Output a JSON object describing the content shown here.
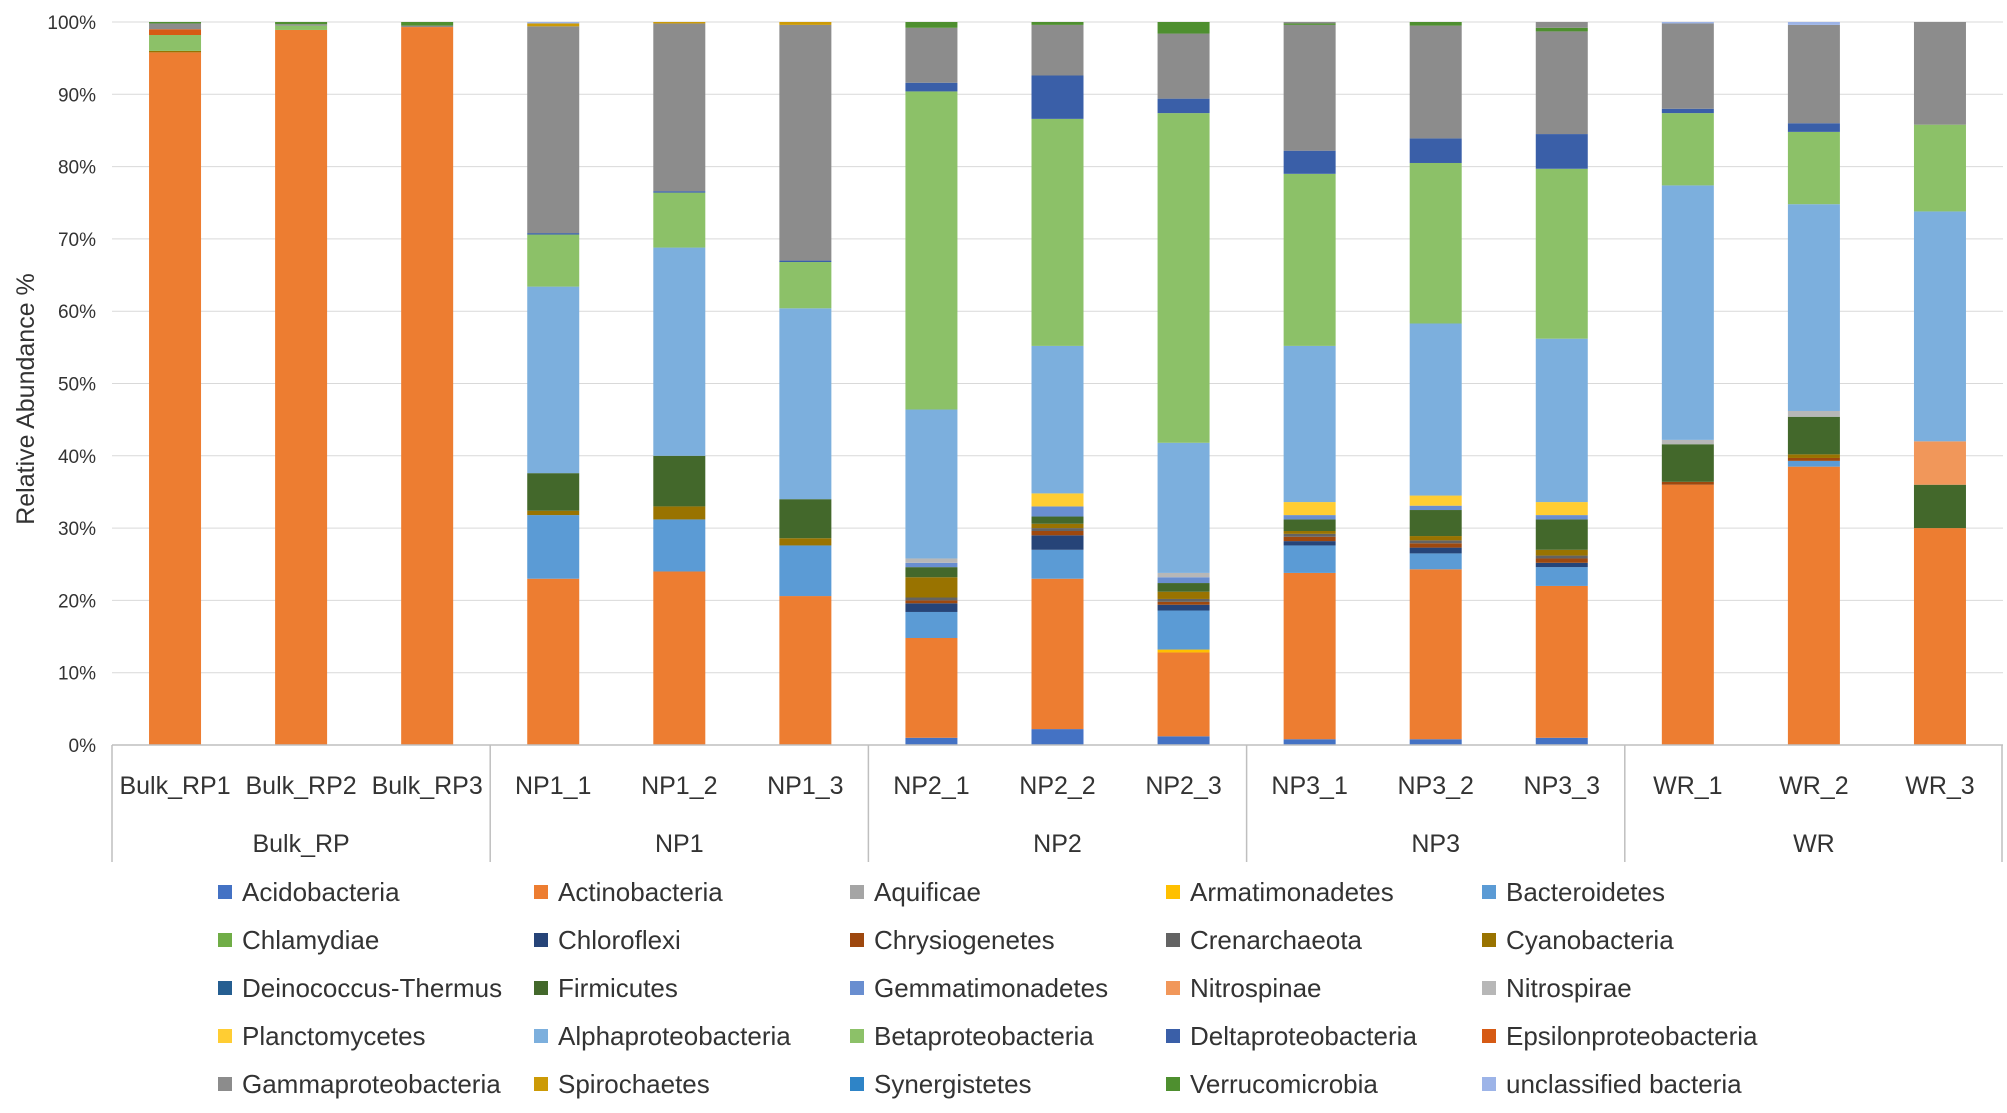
{
  "chart_data": {
    "type": "stacked-bar-100",
    "ylabel": "Relative Abundance %",
    "ylim": [
      0,
      100
    ],
    "yticks": [
      "0%",
      "10%",
      "20%",
      "30%",
      "40%",
      "50%",
      "60%",
      "70%",
      "80%",
      "90%",
      "100%"
    ],
    "categories": [
      "Bulk_RP1",
      "Bulk_RP2",
      "Bulk_RP3",
      "NP1_1",
      "NP1_2",
      "NP1_3",
      "NP2_1",
      "NP2_2",
      "NP2_3",
      "NP3_1",
      "NP3_2",
      "NP3_3",
      "WR_1",
      "WR_2",
      "WR_3"
    ],
    "groups": [
      {
        "name": "Bulk_RP",
        "count": 3
      },
      {
        "name": "NP1",
        "count": 3
      },
      {
        "name": "NP2",
        "count": 3
      },
      {
        "name": "NP3",
        "count": 3
      },
      {
        "name": "WR",
        "count": 3
      }
    ],
    "series": [
      {
        "name": "Acidobacteria",
        "color": "#4472C4",
        "values": [
          0,
          0,
          0,
          0,
          0,
          0,
          1.0,
          2.2,
          1.2,
          0.8,
          0.8,
          1.0,
          0,
          0,
          0
        ]
      },
      {
        "name": "Actinobacteria",
        "color": "#ED7D31",
        "values": [
          95.8,
          98.9,
          99.3,
          23.0,
          24.0,
          20.6,
          13.8,
          20.8,
          11.6,
          23.0,
          23.5,
          21.0,
          36.0,
          38.5,
          30.0
        ]
      },
      {
        "name": "Aquificae",
        "color": "#A5A5A5",
        "values": [
          0,
          0,
          0,
          0,
          0,
          0,
          0,
          0,
          0,
          0,
          0,
          0,
          0,
          0,
          0
        ]
      },
      {
        "name": "Armatimonadetes",
        "color": "#FFC000",
        "values": [
          0,
          0,
          0,
          0,
          0,
          0,
          0,
          0,
          0.4,
          0,
          0,
          0,
          0,
          0,
          0
        ]
      },
      {
        "name": "Bacteroidetes",
        "color": "#5B9BD5",
        "values": [
          0,
          0,
          0,
          8.8,
          7.2,
          7.0,
          3.6,
          4.0,
          5.4,
          3.8,
          2.2,
          2.6,
          0,
          0.8,
          0
        ]
      },
      {
        "name": "Chlamydiae",
        "color": "#70AD47",
        "values": [
          0,
          0,
          0,
          0,
          0,
          0,
          0,
          0,
          0,
          0,
          0,
          0,
          0,
          0,
          0
        ]
      },
      {
        "name": "Chloroflexi",
        "color": "#264478",
        "values": [
          0,
          0,
          0,
          0,
          0,
          0,
          1.2,
          2.0,
          0.8,
          0.6,
          0.8,
          0.6,
          0,
          0,
          0
        ]
      },
      {
        "name": "Chrysiogenetes",
        "color": "#9E480E",
        "values": [
          0,
          0,
          0,
          0,
          0,
          0,
          0.4,
          0.6,
          0.4,
          0.6,
          0.6,
          0.6,
          0.4,
          0.4,
          0
        ]
      },
      {
        "name": "Crenarchaeota",
        "color": "#636363",
        "values": [
          0,
          0,
          0,
          0,
          0,
          0,
          0.4,
          0.4,
          0.4,
          0.4,
          0.4,
          0.4,
          0,
          0,
          0
        ]
      },
      {
        "name": "Cyanobacteria",
        "color": "#997300",
        "values": [
          0.2,
          0,
          0,
          0.6,
          1.8,
          1.0,
          2.8,
          0.6,
          1.0,
          0.4,
          0.6,
          0.8,
          0,
          0.5,
          0
        ]
      },
      {
        "name": "Deinococcus-Thermus",
        "color": "#255E91",
        "values": [
          0,
          0,
          0,
          0,
          0,
          0,
          0,
          0,
          0,
          0,
          0,
          0,
          0,
          0,
          0
        ]
      },
      {
        "name": "Firmicutes",
        "color": "#43682B",
        "values": [
          0,
          0,
          0,
          5.2,
          7.0,
          5.4,
          1.4,
          1.0,
          1.2,
          1.6,
          3.6,
          4.2,
          5.2,
          5.2,
          6.0
        ]
      },
      {
        "name": "Gemmatimonadetes",
        "color": "#698ED0",
        "values": [
          0,
          0,
          0,
          0,
          0,
          0,
          0.6,
          1.4,
          0.8,
          0.6,
          0.6,
          0.6,
          0,
          0,
          0
        ]
      },
      {
        "name": "Nitrospinae",
        "color": "#F1975A",
        "values": [
          0,
          0,
          0,
          0,
          0,
          0,
          0,
          0,
          0,
          0,
          0,
          0,
          0,
          0,
          6.0
        ]
      },
      {
        "name": "Nitrospirae",
        "color": "#B7B7B7",
        "values": [
          0,
          0,
          0,
          0,
          0,
          0,
          0.6,
          0,
          0.6,
          0,
          0,
          0,
          0.6,
          0.8,
          0
        ]
      },
      {
        "name": "Planctomycetes",
        "color": "#FFCD33",
        "values": [
          0,
          0,
          0,
          0,
          0,
          0,
          0,
          1.8,
          0,
          1.8,
          1.4,
          1.8,
          0,
          0,
          0
        ]
      },
      {
        "name": "Alphaproteobacteria",
        "color": "#7CAFDD",
        "values": [
          0,
          0,
          0,
          25.8,
          28.8,
          26.4,
          20.6,
          20.4,
          18.0,
          21.6,
          23.8,
          22.6,
          35.2,
          28.6,
          31.8
        ]
      },
      {
        "name": "Betaproteobacteria",
        "color": "#8CC168",
        "values": [
          2.2,
          0.6,
          0,
          7.2,
          7.6,
          6.4,
          44.0,
          31.4,
          45.6,
          23.8,
          22.2,
          23.5,
          10.0,
          10.0,
          12.0
        ]
      },
      {
        "name": "Deltaproteobacteria",
        "color": "#3A5FA8",
        "values": [
          0,
          0,
          0,
          0.2,
          0.2,
          0.2,
          1.2,
          6.0,
          2.0,
          3.2,
          3.4,
          4.8,
          0.6,
          1.2,
          0
        ]
      },
      {
        "name": "Epsilonproteobacteria",
        "color": "#D65A14",
        "values": [
          0.8,
          0,
          0,
          0,
          0,
          0,
          0,
          0,
          0,
          0,
          0,
          0,
          0,
          0,
          0
        ]
      },
      {
        "name": "Gammaproteobacteria",
        "color": "#8C8C8C",
        "values": [
          0.8,
          0.2,
          0.2,
          28.6,
          23.2,
          32.6,
          7.6,
          7.0,
          9.0,
          17.4,
          15.6,
          14.2,
          11.8,
          13.6,
          14.2
        ]
      },
      {
        "name": "Spirochaetes",
        "color": "#CC9A06",
        "values": [
          0,
          0,
          0,
          0.4,
          0.2,
          0.4,
          0,
          0,
          0,
          0,
          0,
          0,
          0,
          0,
          0
        ]
      },
      {
        "name": "Synergistetes",
        "color": "#2E84C7",
        "values": [
          0,
          0,
          0,
          0,
          0,
          0,
          0,
          0,
          0,
          0,
          0,
          0,
          0,
          0,
          0
        ]
      },
      {
        "name": "Verrucomicrobia",
        "color": "#4E8F2F",
        "values": [
          0.2,
          0.3,
          0.5,
          0,
          0,
          0,
          0.8,
          0.4,
          1.6,
          0.2,
          0.5,
          0.5,
          0,
          0,
          0
        ]
      },
      {
        "name": "unclassified bacteria",
        "color": "#9DB4E8",
        "values": [
          0,
          0,
          0,
          0.2,
          0,
          0,
          0,
          0,
          0,
          0,
          0,
          0,
          0.2,
          0.4,
          0
        ]
      }
    ]
  }
}
